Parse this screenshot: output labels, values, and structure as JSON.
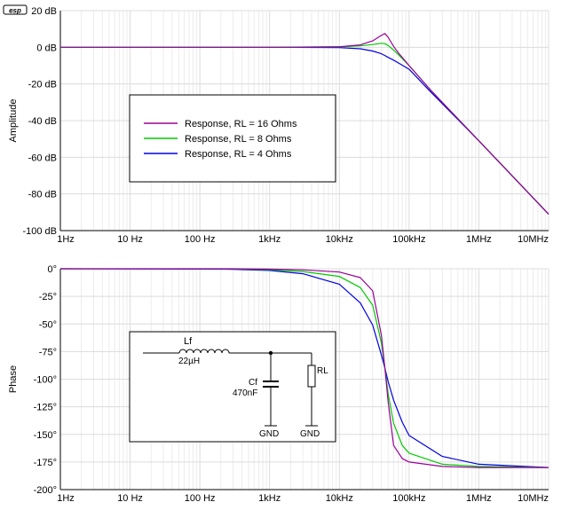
{
  "logo": "esp",
  "colors": {
    "s16": "#990099",
    "s8": "#00c800",
    "s4": "#0000e0",
    "grid": "#dcdcdc"
  },
  "chart_data": [
    {
      "type": "line",
      "ylabel": "Amplitude",
      "x_scale": "log",
      "xlim": [
        1,
        10000000
      ],
      "ylim": [
        -100,
        20
      ],
      "x_ticks": [
        "1Hz",
        "10 Hz",
        "100 Hz",
        "1kHz",
        "10kHz",
        "100kHz",
        "1MHz",
        "10MHz"
      ],
      "y_ticks": [
        "20 dB",
        "0 dB",
        "-20 dB",
        "-40 dB",
        "-60 dB",
        "-80 dB",
        "-100 dB"
      ],
      "legend": [
        "Response, RL = 16 Ohms",
        "Response, RL = 8 Ohms",
        "Response, RL = 4 Ohms"
      ],
      "series": [
        {
          "name": "Response, RL = 16 Ohms",
          "color": "#990099",
          "x": [
            1,
            100,
            1000,
            10000,
            20000,
            30000,
            40000,
            45000,
            50000,
            60000,
            70000,
            100000,
            200000,
            1000000,
            10000000
          ],
          "y": [
            0,
            0,
            0,
            0.3,
            1.3,
            3.5,
            6.5,
            7.5,
            5.5,
            0.5,
            -3,
            -10,
            -23,
            -51,
            -91
          ]
        },
        {
          "name": "Response, RL = 8 Ohms",
          "color": "#00c800",
          "x": [
            1,
            100,
            1000,
            10000,
            20000,
            30000,
            40000,
            45000,
            50000,
            60000,
            70000,
            100000,
            200000,
            1000000,
            10000000
          ],
          "y": [
            0,
            0,
            0,
            0.2,
            0.8,
            1.5,
            2.2,
            2,
            1,
            -1.5,
            -4,
            -10,
            -23,
            -51,
            -91
          ]
        },
        {
          "name": "Response, RL = 4 Ohms",
          "color": "#0000e0",
          "x": [
            1,
            100,
            1000,
            10000,
            20000,
            30000,
            40000,
            45000,
            50000,
            60000,
            70000,
            100000,
            200000,
            1000000,
            10000000
          ],
          "y": [
            0,
            0,
            0,
            -0.2,
            -0.8,
            -2,
            -3.5,
            -4.5,
            -5.5,
            -7,
            -8.5,
            -12,
            -24,
            -51,
            -91
          ]
        }
      ]
    },
    {
      "type": "line",
      "ylabel": "Phase",
      "x_scale": "log",
      "xlim": [
        1,
        10000000
      ],
      "ylim": [
        -200,
        0
      ],
      "x_ticks": [
        "1Hz",
        "10 Hz",
        "100 Hz",
        "1kHz",
        "10kHz",
        "100kHz",
        "1MHz",
        "10MHz"
      ],
      "y_ticks": [
        "0°",
        "-25°",
        "-50°",
        "-75°",
        "-100°",
        "-125°",
        "-150°",
        "-175°",
        "-200°"
      ],
      "series": [
        {
          "name": "Response, RL = 16 Ohms",
          "color": "#990099",
          "x": [
            1,
            300,
            1000,
            3000,
            10000,
            20000,
            30000,
            40000,
            45000,
            50000,
            60000,
            80000,
            100000,
            300000,
            1000000,
            10000000
          ],
          "y": [
            0,
            0,
            -0.3,
            -1,
            -3,
            -8,
            -20,
            -60,
            -90,
            -120,
            -160,
            -172,
            -175,
            -179,
            -180,
            -180
          ]
        },
        {
          "name": "Response, RL = 8 Ohms",
          "color": "#00c800",
          "x": [
            1,
            300,
            1000,
            3000,
            10000,
            20000,
            30000,
            40000,
            45000,
            50000,
            60000,
            80000,
            100000,
            300000,
            1000000,
            10000000
          ],
          "y": [
            0,
            -0.2,
            -0.8,
            -2.5,
            -7,
            -17,
            -33,
            -67,
            -90,
            -113,
            -140,
            -160,
            -167,
            -177,
            -179,
            -180
          ]
        },
        {
          "name": "Response, RL = 4 Ohms",
          "color": "#0000e0",
          "x": [
            1,
            300,
            1000,
            3000,
            10000,
            20000,
            30000,
            40000,
            45000,
            50000,
            60000,
            80000,
            100000,
            300000,
            1000000,
            10000000
          ],
          "y": [
            0,
            -0.5,
            -1.5,
            -4.5,
            -14,
            -31,
            -51,
            -78,
            -90,
            -102,
            -119,
            -139,
            -151,
            -170,
            -177,
            -180
          ]
        }
      ]
    }
  ],
  "schematic": {
    "inductor_label": "Lf",
    "inductor_value": "22µH",
    "capacitor_label": "Cf",
    "capacitor_value": "470nF",
    "resistor_label": "RL",
    "gnd_label_1": "GND",
    "gnd_label_2": "GND"
  }
}
